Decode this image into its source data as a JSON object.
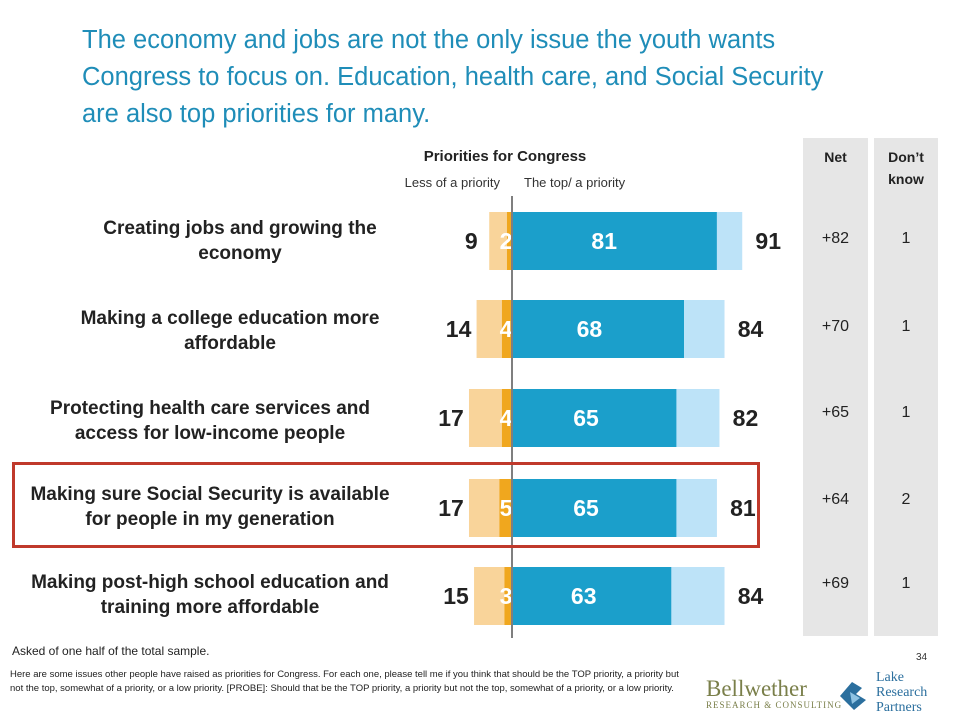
{
  "headline": "The economy and jobs are not the only issue the youth wants Congress to focus on. Education, health care, and Social Security are also top priorities for many.",
  "columns": {
    "net_header": "Net",
    "dont_know_header": "Don’t know"
  },
  "rows": [
    {
      "label": "Creating jobs and growing the economy",
      "net": "+82",
      "dont_know": "1"
    },
    {
      "label": "Making a college education more affordable",
      "net": "+70",
      "dont_know": "1"
    },
    {
      "label": "Protecting health care services and access for low-income people",
      "net": "+65",
      "dont_know": "1"
    },
    {
      "label": "Making sure Social Security is available for people in my generation",
      "net": "+64",
      "dont_know": "2"
    },
    {
      "label": "Making post-high school education and training more affordable",
      "net": "+69",
      "dont_know": "1"
    }
  ],
  "chart_data": {
    "type": "bar",
    "orientation": "horizontal-diverging",
    "title": "Priorities for Congress",
    "left_header": "Less of a priority",
    "right_header": "The top/ a priority",
    "categories": [
      "Creating jobs and growing the economy",
      "Making a college education more affordable",
      "Protecting health care services and access for low-income people",
      "Making sure Social Security is available for people in my generation",
      "Making post-high school education and training more affordable"
    ],
    "less_total": [
      9,
      14,
      17,
      17,
      15
    ],
    "less_inner": [
      2,
      4,
      4,
      5,
      3
    ],
    "top_priority": [
      81,
      68,
      65,
      65,
      63
    ],
    "priority_total": [
      91,
      84,
      82,
      81,
      84
    ],
    "colors": {
      "less_outer": "#f9d49a",
      "less_inner": "#f0a71e",
      "top": "#1b9fcb",
      "priority": "#bde3f8",
      "top_label": "#ffffff",
      "inner_label": "#ffffff"
    },
    "highlighted_category_index": 3
  },
  "footnote": "Asked of one half of the total sample.",
  "question_text": "Here are some issues other people have raised as priorities for Congress. For each one, please tell me if you think that should be the TOP priority, a priority but not the top, somewhat of a priority, or a low priority. [PROBE]: Should that be the TOP priority, a priority but not the top, somewhat of a priority, or a low priority.",
  "page_number": "34",
  "logos": {
    "bellwether_line1": "Bellwether",
    "bellwether_line2": "RESEARCH & CONSULTING",
    "lake_text": "Lake Research Partners"
  }
}
